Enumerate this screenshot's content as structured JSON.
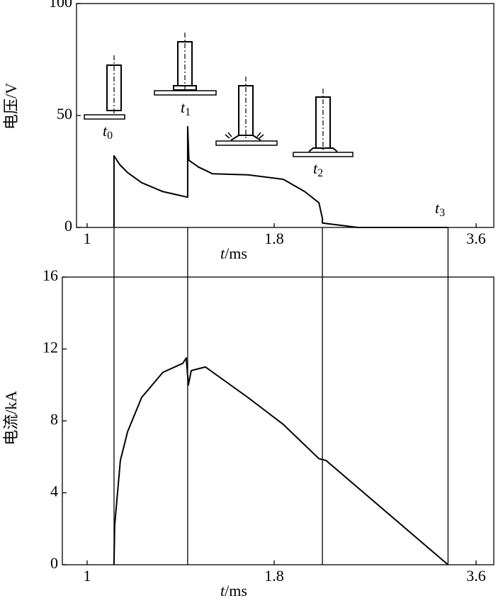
{
  "chart_data": [
    {
      "type": "line",
      "y_label": "电压/V",
      "x_label_symbol": "t",
      "x_label_unit": "/ms",
      "xlim": [
        0.95,
        3.76
      ],
      "xticks": [
        1,
        1.8,
        3.6
      ],
      "ylim": [
        0,
        100
      ],
      "yticks": [
        0,
        50,
        100
      ],
      "color": "#000000",
      "x": [
        1.115,
        1.115,
        1.14,
        1.173,
        1.233,
        1.324,
        1.43,
        1.43,
        1.435,
        1.476,
        1.536,
        1.688,
        1.882,
        2.072,
        2.199,
        2.23,
        2.23,
        2.547,
        3.35
      ],
      "values": [
        0,
        32,
        28,
        24.5,
        20,
        16,
        13.5,
        45,
        30,
        27,
        24,
        23.5,
        21.5,
        16,
        11,
        4,
        2,
        0,
        0
      ],
      "markers": [
        {
          "label": "t",
          "subscript": "0",
          "x": 1.115
        },
        {
          "label": "t",
          "subscript": "1",
          "x": 1.43
        },
        {
          "label": "t",
          "subscript": "2",
          "x": 2.23
        },
        {
          "label": "t",
          "subscript": "3",
          "x": 3.35
        }
      ]
    },
    {
      "type": "line",
      "y_label": "电流/kA",
      "x_label_symbol": "t",
      "x_label_unit": "/ms",
      "xlim": [
        0.89,
        3.76
      ],
      "xticks": [
        1,
        1.8,
        3.6
      ],
      "ylim": [
        0,
        16
      ],
      "yticks": [
        0,
        4,
        8,
        12,
        16
      ],
      "color": "#000000",
      "x": [
        1.115,
        1.118,
        1.142,
        1.173,
        1.233,
        1.324,
        1.409,
        1.424,
        1.433,
        1.445,
        1.506,
        1.688,
        1.882,
        2.199,
        2.262,
        3.35
      ],
      "values": [
        0,
        2.2,
        5.8,
        7.4,
        9.3,
        10.7,
        11.2,
        11.5,
        10.0,
        10.8,
        11.0,
        9.3,
        7.8,
        5.9,
        5.8,
        0
      ]
    }
  ]
}
